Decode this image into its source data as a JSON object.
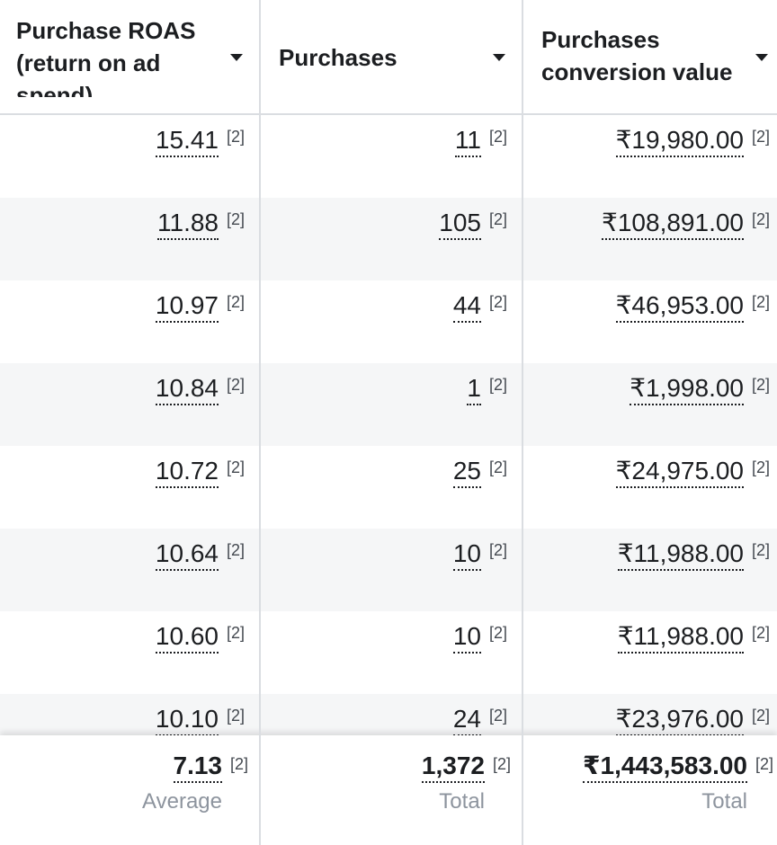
{
  "columns": [
    {
      "title": "Purchase ROAS (return on ad spend)"
    },
    {
      "title": "Purchases"
    },
    {
      "title": "Purchases conversion value"
    }
  ],
  "rows": [
    {
      "roas": "15.41",
      "purchases": "11",
      "value": "₹19,980.00"
    },
    {
      "roas": "11.88",
      "purchases": "105",
      "value": "₹108,891.00"
    },
    {
      "roas": "10.97",
      "purchases": "44",
      "value": "₹46,953.00"
    },
    {
      "roas": "10.84",
      "purchases": "1",
      "value": "₹1,998.00"
    },
    {
      "roas": "10.72",
      "purchases": "25",
      "value": "₹24,975.00"
    },
    {
      "roas": "10.64",
      "purchases": "10",
      "value": "₹11,988.00"
    },
    {
      "roas": "10.60",
      "purchases": "10",
      "value": "₹11,988.00"
    },
    {
      "roas": "10.10",
      "purchases": "24",
      "value": "₹23,976.00"
    }
  ],
  "footnote_marker": "[2]",
  "summary": {
    "roas": {
      "value": "7.13",
      "label": "Average"
    },
    "purchases": {
      "value": "1,372",
      "label": "Total"
    },
    "value": {
      "value": "₹1,443,583.00",
      "label": "Total"
    }
  }
}
